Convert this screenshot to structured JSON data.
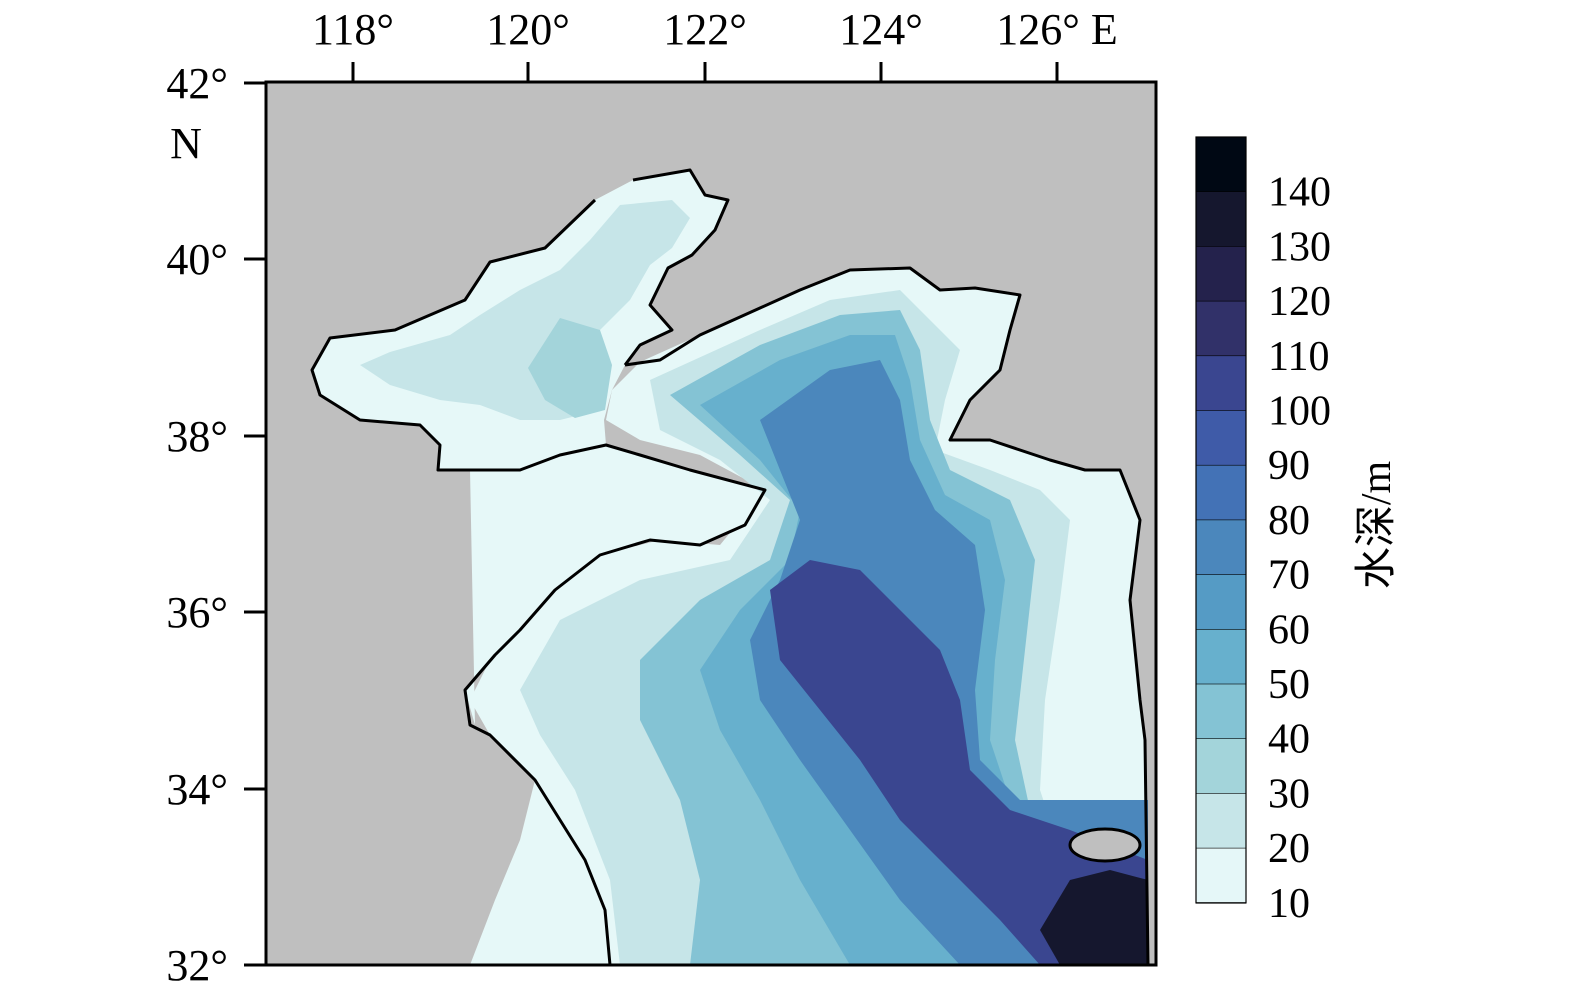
{
  "map": {
    "x_axis": {
      "ticks": [
        "118°",
        "120°",
        "122°",
        "124°",
        "126° E"
      ]
    },
    "y_axis": {
      "ticks": [
        "42°",
        "40°",
        "38°",
        "36°",
        "34°",
        "32°"
      ],
      "hemisphere_label": "N"
    },
    "land_color": "#bfbfbf",
    "frame_color": "#000000"
  },
  "colorbar": {
    "title": "水深/m",
    "labels": [
      "140",
      "130",
      "120",
      "110",
      "100",
      "90",
      "80",
      "70",
      "60",
      "50",
      "40",
      "30",
      "20",
      "10"
    ],
    "colors": [
      "#000814",
      "#15172e",
      "#24224c",
      "#313169",
      "#3a4690",
      "#3f5ba8",
      "#4372b6",
      "#4b87bc",
      "#559bc5",
      "#67b0cd",
      "#84c3d4",
      "#a3d4da",
      "#c6e5e8",
      "#e5f7f8"
    ]
  }
}
